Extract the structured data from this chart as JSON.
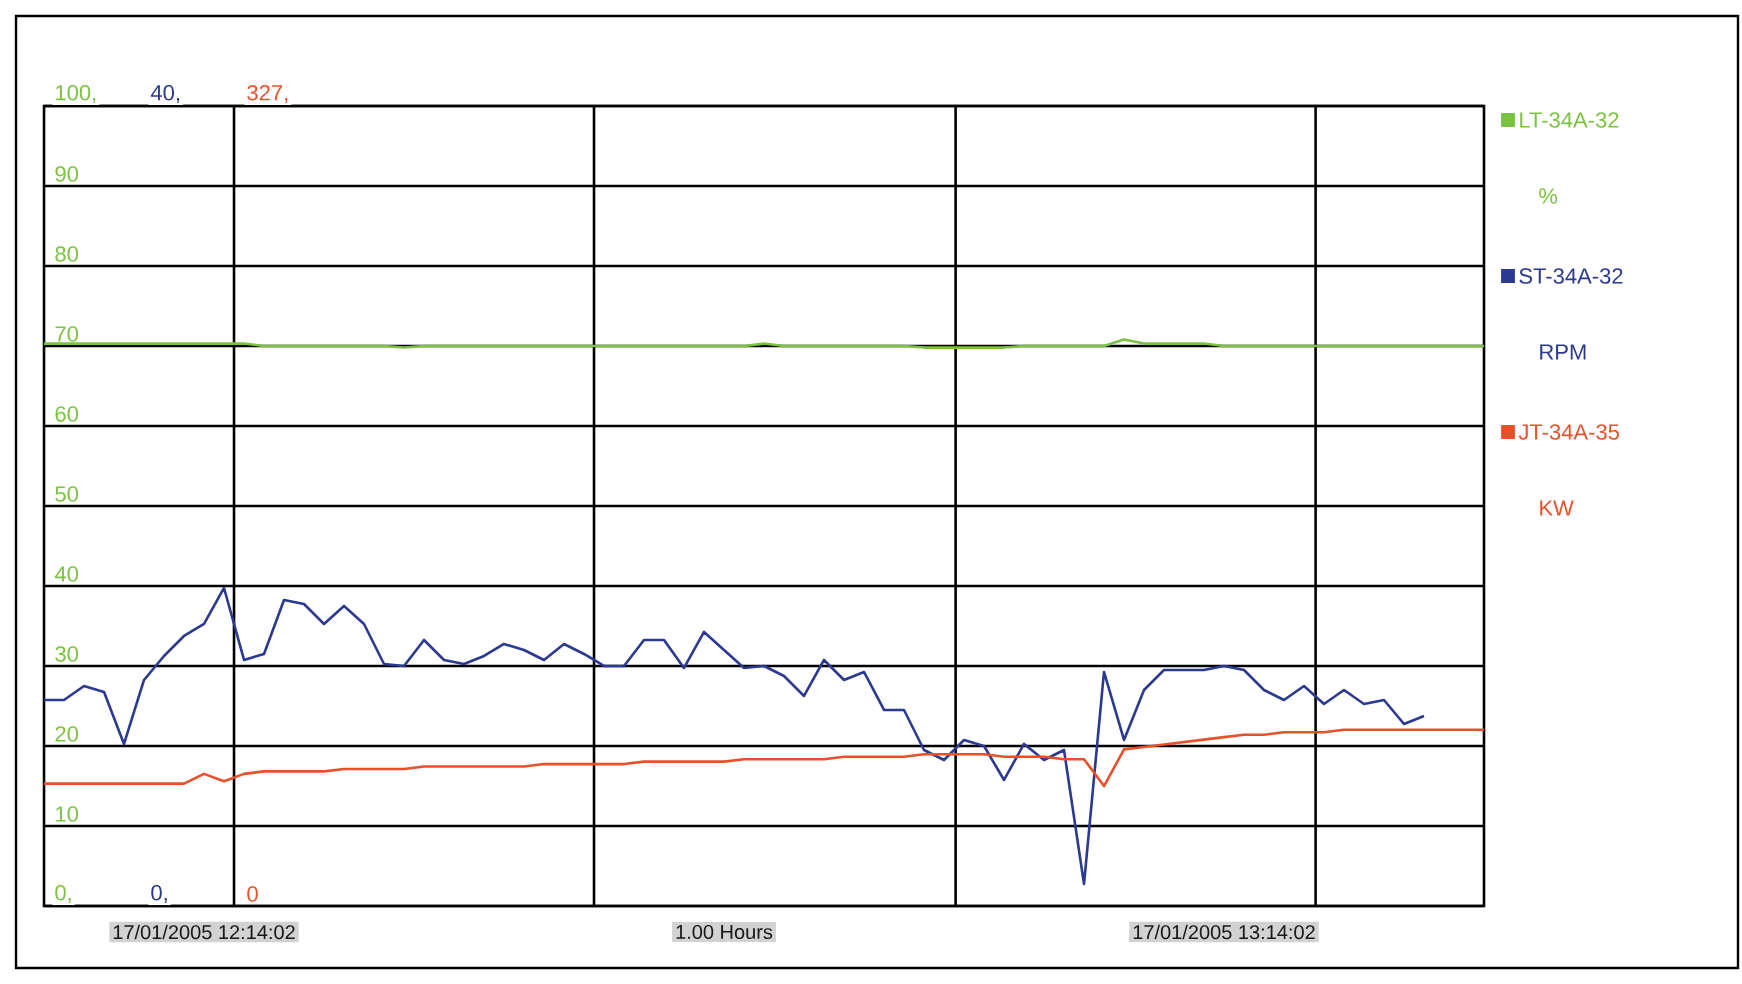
{
  "chart_data": {
    "type": "line",
    "categories": [
      null,
      null,
      null,
      null,
      null,
      null,
      null,
      null,
      null,
      null,
      null,
      null,
      null,
      null,
      null,
      null,
      null,
      null,
      null,
      null,
      null,
      null,
      null,
      null,
      null,
      null,
      null,
      null,
      null,
      null,
      null,
      null,
      null,
      null,
      null,
      null,
      null,
      null,
      null,
      null,
      null,
      null,
      null,
      null,
      null,
      null,
      null,
      null,
      null,
      null,
      null,
      null,
      null,
      null,
      null,
      null,
      null,
      null,
      null,
      null,
      null,
      null,
      null,
      null,
      null,
      null,
      null,
      null,
      null,
      null,
      null,
      null,
      null
    ],
    "ylim": [
      0,
      100
    ],
    "yticks": [
      {
        "value": 0,
        "label": "0,"
      },
      10,
      20,
      30,
      40,
      50,
      60,
      70,
      80,
      90,
      {
        "value": 100,
        "label": "100,"
      }
    ],
    "y2lim": [
      0,
      40
    ],
    "y2ticks": [
      {
        "value": 0,
        "label": "0,"
      },
      {
        "value": 40,
        "label": "40,"
      }
    ],
    "y3lim": [
      0,
      327
    ],
    "y3ticks": [
      0,
      {
        "value": 327,
        "label": "327,"
      }
    ],
    "grid": true,
    "legend": "right",
    "tick_labels": "y",
    "line_style": "solid",
    "annotations": [
      "%",
      "RPM",
      "KW",
      "17/01/2005 12:14:02",
      "1.00 Hours",
      "17/01/2005 13:14:02"
    ],
    "series": [
      {
        "name": "LT-34A-32",
        "color": "#7cc242",
        "axis": "y",
        "values": [
          70.3,
          70.3,
          70.3,
          70.3,
          70.3,
          70.3,
          70.3,
          70.3,
          70.3,
          70.3,
          70.3,
          70.0,
          70.0,
          70.0,
          70.0,
          70.0,
          70.0,
          70.0,
          69.8,
          70.0,
          70.0,
          70.0,
          70.0,
          70.0,
          70.0,
          70.0,
          70.0,
          70.0,
          70.0,
          70.0,
          70.0,
          70.0,
          70.0,
          70.0,
          70.0,
          70.0,
          70.3,
          70.0,
          70.0,
          70.0,
          70.0,
          70.0,
          70.0,
          70.0,
          69.8,
          69.8,
          69.8,
          69.8,
          69.8,
          70.0,
          70.0,
          70.0,
          70.0,
          70.0,
          70.8,
          70.3,
          70.3,
          70.3,
          70.3,
          70.0,
          70.0,
          70.0,
          70.0,
          70.0,
          70.0,
          70.0,
          70.0,
          70.0,
          70.0,
          70.0,
          70.0,
          70.0,
          70.0
        ]
      },
      {
        "name": "ST-34A-32",
        "color": "#2b3990",
        "axis": "y2",
        "values": [
          10.3,
          10.3,
          11.0,
          10.7,
          8.1,
          11.3,
          12.5,
          13.5,
          14.1,
          15.9,
          12.3,
          12.6,
          15.3,
          15.1,
          14.1,
          15.0,
          14.1,
          12.1,
          12.0,
          13.3,
          12.3,
          12.1,
          12.5,
          13.1,
          12.8,
          12.3,
          13.1,
          12.6,
          12.0,
          12.0,
          13.3,
          13.3,
          11.9,
          13.7,
          12.8,
          11.9,
          12.0,
          11.5,
          10.5,
          12.3,
          11.3,
          11.7,
          9.8,
          9.8,
          7.8,
          7.3,
          8.3,
          8.0,
          6.3,
          8.1,
          7.3,
          7.8,
          1.1,
          11.7,
          8.3,
          10.8,
          11.8,
          11.8,
          11.8,
          12.0,
          11.8,
          10.8,
          10.3,
          11.0,
          10.1,
          10.8,
          10.1,
          10.3,
          9.1,
          9.5,
          null,
          null,
          null
        ]
      },
      {
        "name": "JT-34A-35",
        "color": "#e8502a",
        "axis": "y3",
        "values": [
          50,
          50,
          50,
          50,
          50,
          50,
          50,
          50,
          54,
          51,
          54,
          55,
          55,
          55,
          55,
          56,
          56,
          56,
          56,
          57,
          57,
          57,
          57,
          57,
          57,
          58,
          58,
          58,
          58,
          58,
          59,
          59,
          59,
          59,
          59,
          60,
          60,
          60,
          60,
          60,
          61,
          61,
          61,
          61,
          62,
          62,
          62,
          62,
          61,
          61,
          61,
          60,
          60,
          49,
          64,
          65,
          66,
          67,
          68,
          69,
          70,
          70,
          71,
          71,
          71,
          72,
          72,
          72,
          72,
          72,
          72,
          72,
          72
        ]
      }
    ]
  }
}
